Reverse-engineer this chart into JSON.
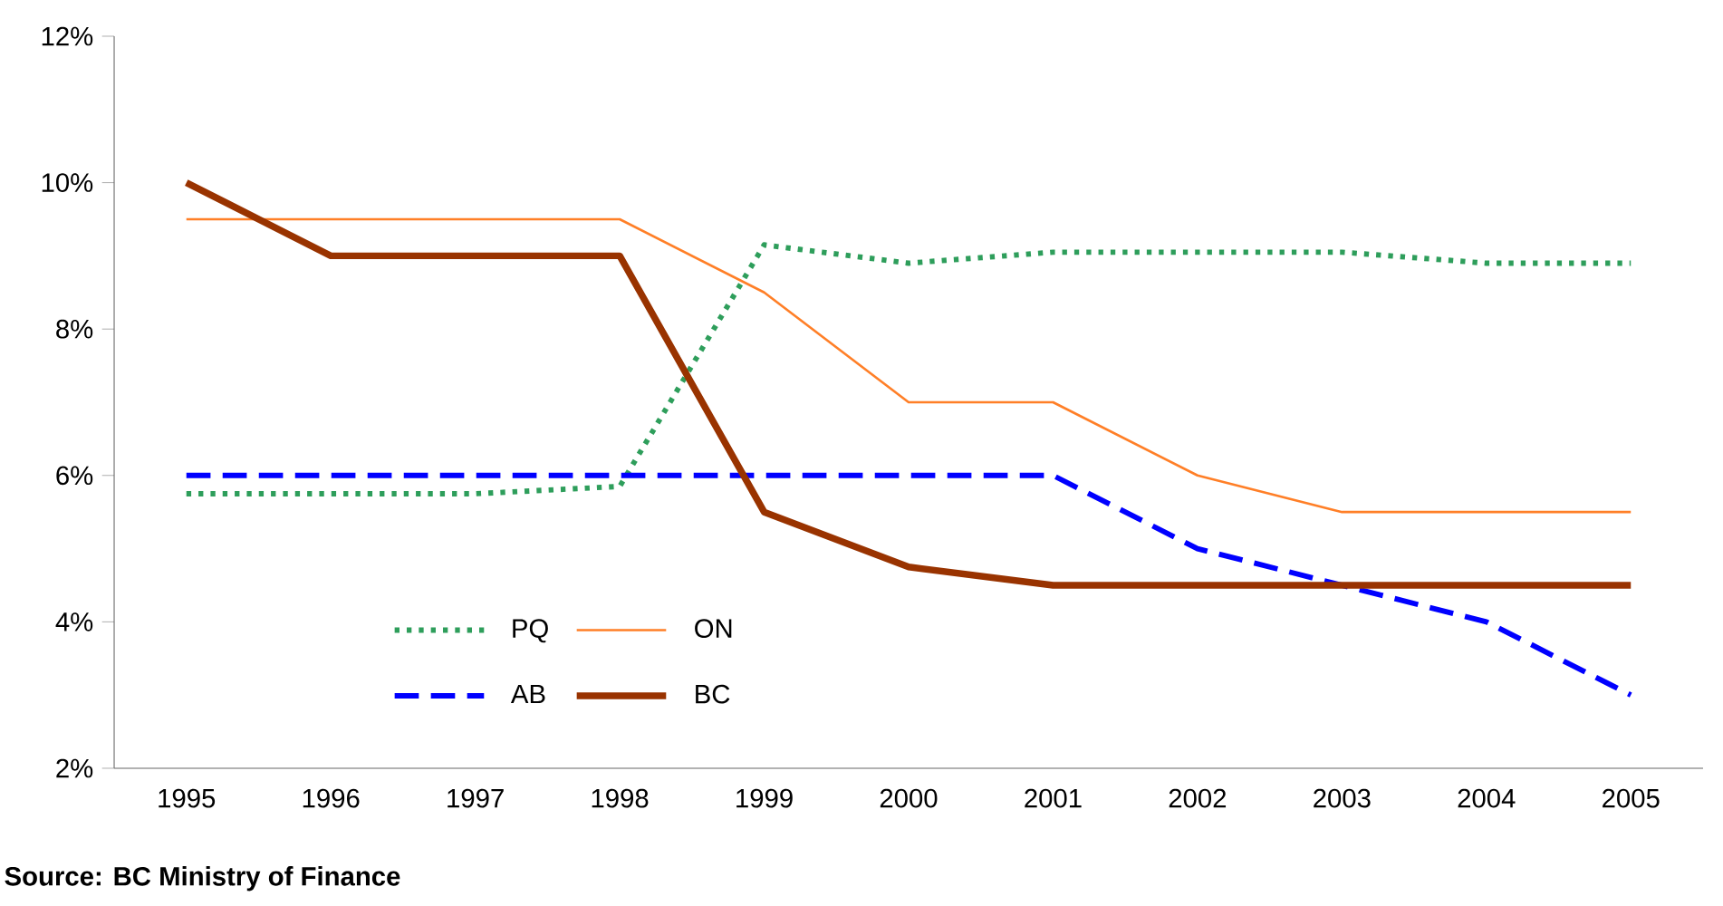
{
  "chart_data": {
    "type": "line",
    "categories": [
      "1995",
      "1996",
      "1997",
      "1998",
      "1999",
      "2000",
      "2001",
      "2002",
      "2003",
      "2004",
      "2005"
    ],
    "series": [
      {
        "name": "PQ",
        "color": "#2e9e5b",
        "line_style": "dotted",
        "values": [
          5.75,
          5.75,
          5.75,
          5.85,
          9.15,
          8.9,
          9.05,
          9.05,
          9.05,
          8.9,
          8.9
        ]
      },
      {
        "name": "ON",
        "color": "#ff7f27",
        "line_style": "solid",
        "values": [
          9.5,
          9.5,
          9.5,
          9.5,
          8.5,
          7.0,
          7.0,
          6.0,
          5.5,
          5.5,
          5.5
        ]
      },
      {
        "name": "AB",
        "color": "#0000ff",
        "line_style": "dashed",
        "values": [
          6.0,
          6.0,
          6.0,
          6.0,
          6.0,
          6.0,
          6.0,
          5.0,
          4.5,
          4.0,
          3.0
        ]
      },
      {
        "name": "BC",
        "color": "#993300",
        "line_style": "solid",
        "values": [
          10.0,
          9.0,
          9.0,
          9.0,
          5.5,
          4.75,
          4.5,
          4.5,
          4.5,
          4.5,
          4.5
        ]
      }
    ],
    "ylim": [
      2,
      12
    ],
    "yticks": [
      {
        "value": 2,
        "label": "2%"
      },
      {
        "value": 4,
        "label": "4%"
      },
      {
        "value": 6,
        "label": "6%"
      },
      {
        "value": 8,
        "label": "8%"
      },
      {
        "value": 10,
        "label": "10%"
      },
      {
        "value": 12,
        "label": "12%"
      }
    ],
    "grid": false,
    "legend": "bottom left",
    "marker": "none",
    "annotations": [
      "Source: BC Ministry of Finance"
    ]
  }
}
